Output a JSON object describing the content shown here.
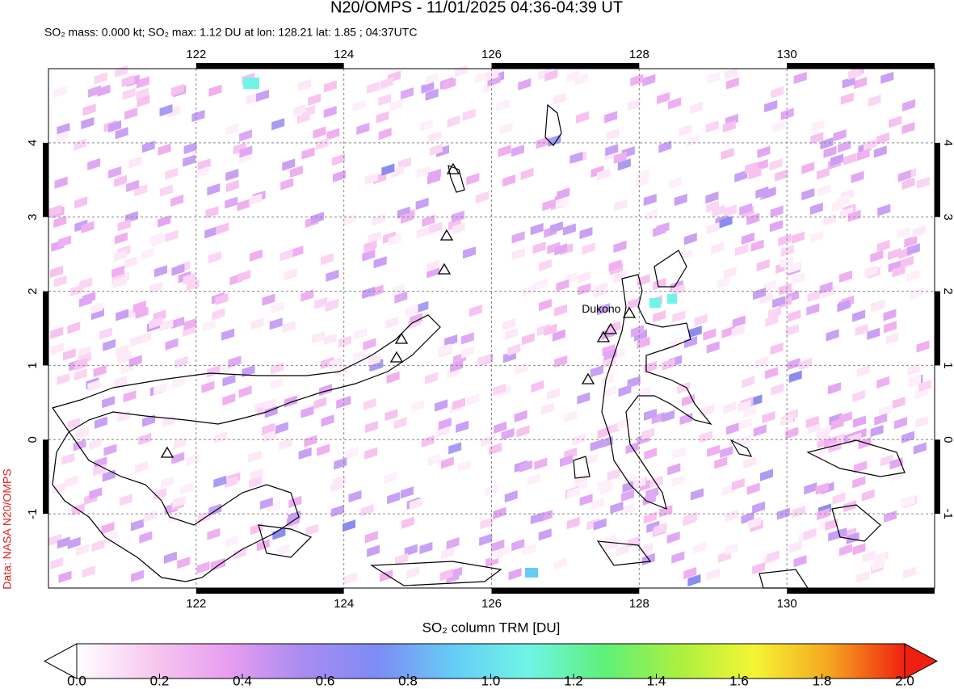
{
  "chart_data": {
    "type": "map",
    "title": "N20/OMPS - 11/01/2025 04:36-04:39 UT",
    "subtitle": "SO₂ mass: 0.000 kt; SO₂ max: 1.12 DU at lon: 128.21 lat: 1.85 ; 04:37UTC",
    "xlim": [
      120,
      132
    ],
    "xticks": [
      122,
      124,
      126,
      128,
      130
    ],
    "ylim": [
      -2,
      5
    ],
    "yticks": [
      -1,
      0,
      1,
      2,
      3,
      4
    ],
    "grid": true,
    "annotations": [
      {
        "text": "Dukono",
        "x": 127.75,
        "y": 1.75
      }
    ],
    "colorbar": {
      "label": "SO₂ column TRM [DU]",
      "lim": [
        0,
        2
      ],
      "ticks": [
        {
          "value": 0,
          "label": "0.0"
        },
        0.2,
        0.4,
        0.6,
        0.8,
        {
          "value": 1,
          "label": "1.0"
        },
        1.2,
        1.4,
        1.6,
        1.8,
        {
          "value": 2,
          "label": "2.0"
        }
      ],
      "colors": [
        "#ffffff",
        "#f7c8ef",
        "#e89ef0",
        "#a98cf0",
        "#7d8cf5",
        "#66ccf5",
        "#6ff5e6",
        "#5ef07a",
        "#aaf040",
        "#f5f535",
        "#f5a620",
        "#f02010"
      ]
    },
    "credit": "Data: NASA N20/OMPS"
  }
}
